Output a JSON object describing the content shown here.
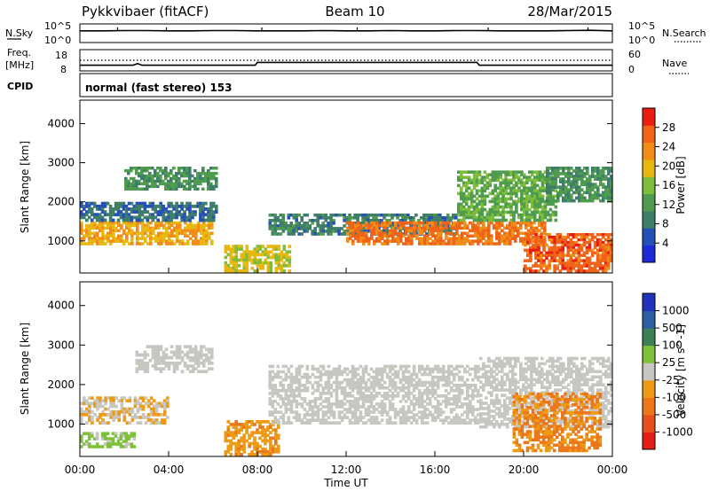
{
  "header": {
    "station": "Pykkvibaer (fitACF)",
    "beam": "Beam 10",
    "date": "28/Mar/2015"
  },
  "top_panels": {
    "nsky_label": "N.Sky",
    "nsky_ticks": [
      "10^5",
      "10^0"
    ],
    "nsearch_label": "N.Search",
    "nsearch_ticks": [
      "10^5",
      "10^0"
    ],
    "freq_label_line1": "Freq.",
    "freq_label_line2": "[MHz]",
    "freq_ticks": [
      "18",
      "8"
    ],
    "nave_label": "Nave",
    "nave_ticks": [
      "60",
      "0"
    ],
    "cpid_label": "CPID",
    "cpid_text": "normal (fast stereo) 153"
  },
  "x_axis": {
    "label": "Time UT",
    "ticks": [
      "00:00",
      "04:00",
      "08:00",
      "12:00",
      "16:00",
      "20:00",
      "00:00"
    ]
  },
  "colors": {
    "power": [
      "#1d2bd6",
      "#2450b8",
      "#3f7f69",
      "#4f9c4f",
      "#7dbd3b",
      "#e8b810",
      "#f28c18",
      "#ef6419",
      "#e81e12"
    ],
    "velocity": [
      "#2233bb",
      "#2c5fa4",
      "#3d8055",
      "#7ec23c",
      "#c8c6c0",
      "#ed9a15",
      "#ec761a",
      "#e64e1c",
      "#e51f15"
    ]
  },
  "chart_data": [
    {
      "type": "line",
      "name": "N.Sky / N.Search panel",
      "x_range_hours": [
        0,
        24
      ],
      "y_scale": "log",
      "y_ticks": [
        "10^0",
        "10^5"
      ],
      "series": [
        {
          "x": [
            0,
            1,
            2,
            3,
            4,
            5,
            6,
            7,
            8,
            9,
            10,
            11,
            12,
            13,
            14,
            15,
            16,
            17,
            18,
            19,
            20,
            21,
            22,
            23,
            24
          ],
          "values": [
            3.5,
            3.5,
            3.6,
            3.6,
            3.5,
            3.5,
            3.6,
            3.6,
            3.5,
            3.5,
            3.5,
            3.6,
            3.5,
            3.5,
            3.6,
            3.5,
            3.5,
            3.6,
            3.6,
            3.5,
            3.5,
            3.5,
            3.6,
            3.7,
            3.5
          ]
        }
      ]
    },
    {
      "type": "line",
      "name": "Freq / Nave panel",
      "x_range_hours": [
        0,
        24
      ],
      "y_ticks_freq_mhz": [
        8,
        18
      ],
      "y_ticks_nave": [
        0,
        60
      ],
      "series": [
        {
          "x": [
            0,
            2.4,
            2.6,
            2.8,
            7.9,
            8.0,
            17.9,
            18.0,
            24
          ],
          "values": [
            9.5,
            9.5,
            10.7,
            9.5,
            9.5,
            11.5,
            11.5,
            9.5,
            9.5
          ]
        },
        {
          "x": [
            0,
            24
          ],
          "values": [
            13,
            13
          ]
        }
      ]
    },
    {
      "type": "heatmap",
      "title": "",
      "xlabel": "Time UT",
      "ylabel": "Slant Range [km]",
      "x_range_hours": [
        0,
        24
      ],
      "ylim": [
        180,
        4600
      ],
      "y_ticks": [
        1000,
        2000,
        3000,
        4000
      ],
      "colorbar": {
        "label": "Power [dB]",
        "ticks": [
          "4",
          "8",
          "12",
          "16",
          "20",
          "24",
          "28"
        ]
      },
      "bands": [
        {
          "t0": 0.0,
          "t1": 6.0,
          "r0": 900,
          "r1": 1500,
          "value_db": 20
        },
        {
          "t0": 0.0,
          "t1": 6.2,
          "r0": 1500,
          "r1": 2000,
          "value_db": 9
        },
        {
          "t0": 2.0,
          "t1": 6.2,
          "r0": 2300,
          "r1": 2900,
          "value_db": 12
        },
        {
          "t0": 6.5,
          "t1": 9.5,
          "r0": 200,
          "r1": 900,
          "value_db": 18
        },
        {
          "t0": 8.5,
          "t1": 17.0,
          "r0": 1150,
          "r1": 1700,
          "value_db": 10
        },
        {
          "t0": 12.0,
          "t1": 21.0,
          "r0": 900,
          "r1": 1500,
          "value_db": 24
        },
        {
          "t0": 17.0,
          "t1": 21.5,
          "r0": 1500,
          "r1": 2800,
          "value_db": 14
        },
        {
          "t0": 20.0,
          "t1": 24.0,
          "r0": 200,
          "r1": 1200,
          "value_db": 25
        },
        {
          "t0": 21.0,
          "t1": 24.0,
          "r0": 2000,
          "r1": 2900,
          "value_db": 12
        }
      ]
    },
    {
      "type": "heatmap",
      "title": "",
      "xlabel": "Time UT",
      "ylabel": "Slant Range [km]",
      "x_range_hours": [
        0,
        24
      ],
      "ylim": [
        180,
        4600
      ],
      "y_ticks": [
        1000,
        2000,
        3000,
        4000
      ],
      "colorbar": {
        "label": "Velocity [m s^-1]",
        "ticks": [
          "1000",
          "500",
          "100",
          "25",
          "-25",
          "-100",
          "-500",
          "-1000"
        ]
      },
      "bands": [
        {
          "t0": 0.0,
          "t1": 4.0,
          "r0": 1000,
          "r1": 1700,
          "value_ms": -100
        },
        {
          "t0": 2.5,
          "t1": 6.0,
          "r0": 2300,
          "r1": 3000,
          "value_ms": 0
        },
        {
          "t0": 0.0,
          "t1": 2.5,
          "r0": 400,
          "r1": 800,
          "value_ms": 200
        },
        {
          "t0": 6.5,
          "t1": 9.0,
          "r0": 200,
          "r1": 1100,
          "value_ms": -300
        },
        {
          "t0": 8.5,
          "t1": 18.0,
          "r0": 1000,
          "r1": 2500,
          "value_ms": 0
        },
        {
          "t0": 18.0,
          "t1": 24.0,
          "r0": 900,
          "r1": 2700,
          "value_ms": 0
        },
        {
          "t0": 19.5,
          "t1": 23.5,
          "r0": 300,
          "r1": 1800,
          "value_ms": -400
        }
      ]
    }
  ]
}
